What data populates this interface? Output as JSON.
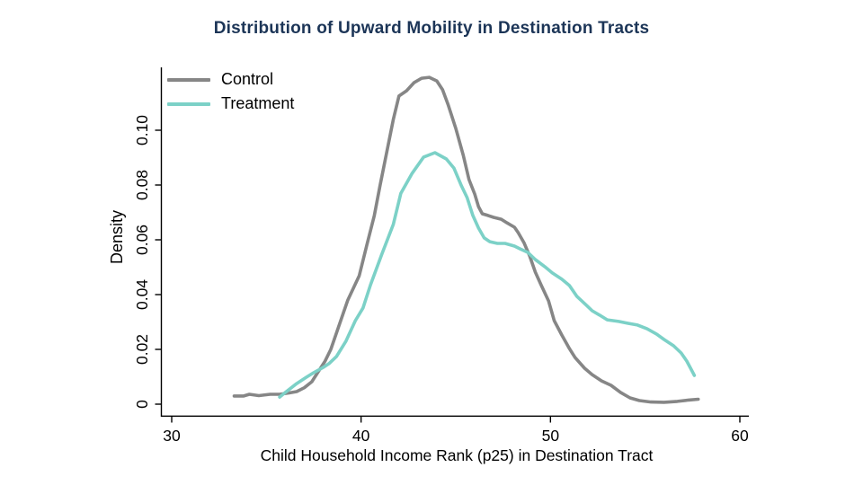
{
  "title": "Distribution of Upward Mobility in Destination Tracts",
  "colors": {
    "title": "#1c3557",
    "axis": "#000000",
    "control": "#868686",
    "treatment": "#7cd1c7",
    "background": "#ffffff"
  },
  "legend": {
    "items": [
      "Control",
      "Treatment"
    ]
  },
  "chart_data": {
    "type": "line",
    "title": "Distribution of Upward Mobility in Destination Tracts",
    "xlabel": "Child Household Income Rank (p25) in Destination Tract",
    "ylabel": "Density",
    "xlim": [
      29.4,
      60.5
    ],
    "ylim": [
      0,
      0.127
    ],
    "x_ticks": [
      30,
      40,
      50,
      60
    ],
    "x_tick_labels": [
      "30",
      "40",
      "50",
      "60"
    ],
    "y_ticks": [
      0,
      0.02,
      0.04,
      0.06,
      0.08,
      0.1
    ],
    "y_tick_labels": [
      "0",
      "0.02",
      "0.04",
      "0.06",
      "0.08",
      "0.10"
    ],
    "grid": false,
    "legend_position": "top-left-inside",
    "series": [
      {
        "name": "Control",
        "color": "#868686",
        "points": [
          [
            33.3,
            0.003
          ],
          [
            33.8,
            0.003
          ],
          [
            34.1,
            0.0036
          ],
          [
            34.6,
            0.0031
          ],
          [
            35.2,
            0.0036
          ],
          [
            35.7,
            0.0036
          ],
          [
            36.2,
            0.0041
          ],
          [
            36.6,
            0.0046
          ],
          [
            37.0,
            0.006
          ],
          [
            37.4,
            0.0082
          ],
          [
            37.8,
            0.0125
          ],
          [
            38.1,
            0.0157
          ],
          [
            38.4,
            0.02
          ],
          [
            38.8,
            0.028
          ],
          [
            39.3,
            0.038
          ],
          [
            39.9,
            0.0469
          ],
          [
            40.3,
            0.058
          ],
          [
            40.7,
            0.0689
          ],
          [
            41.0,
            0.0797
          ],
          [
            41.7,
            0.1039
          ],
          [
            42.0,
            0.1125
          ],
          [
            42.4,
            0.1144
          ],
          [
            42.8,
            0.1174
          ],
          [
            43.2,
            0.119
          ],
          [
            43.6,
            0.1193
          ],
          [
            44.0,
            0.118
          ],
          [
            44.3,
            0.1148
          ],
          [
            44.6,
            0.1092
          ],
          [
            45.0,
            0.1007
          ],
          [
            45.4,
            0.0908
          ],
          [
            45.7,
            0.082
          ],
          [
            46.0,
            0.0767
          ],
          [
            46.2,
            0.0721
          ],
          [
            46.4,
            0.0695
          ],
          [
            46.7,
            0.0689
          ],
          [
            47.0,
            0.0682
          ],
          [
            47.4,
            0.0675
          ],
          [
            47.7,
            0.0662
          ],
          [
            48.1,
            0.0646
          ],
          [
            48.3,
            0.0626
          ],
          [
            48.6,
            0.059
          ],
          [
            48.9,
            0.0541
          ],
          [
            49.2,
            0.0482
          ],
          [
            49.5,
            0.0436
          ],
          [
            49.9,
            0.0377
          ],
          [
            50.2,
            0.0305
          ],
          [
            50.6,
            0.0252
          ],
          [
            51.0,
            0.0203
          ],
          [
            51.3,
            0.017
          ],
          [
            51.8,
            0.0131
          ],
          [
            52.2,
            0.0108
          ],
          [
            52.7,
            0.0085
          ],
          [
            53.2,
            0.0069
          ],
          [
            53.7,
            0.0043
          ],
          [
            54.2,
            0.0023
          ],
          [
            54.7,
            0.0013
          ],
          [
            55.3,
            0.0008
          ],
          [
            56.0,
            0.0007
          ],
          [
            56.7,
            0.001
          ],
          [
            57.3,
            0.0015
          ],
          [
            57.8,
            0.0018
          ]
        ]
      },
      {
        "name": "Treatment",
        "color": "#7cd1c7",
        "points": [
          [
            35.7,
            0.0026
          ],
          [
            36.0,
            0.0043
          ],
          [
            36.6,
            0.0075
          ],
          [
            37.1,
            0.0098
          ],
          [
            37.5,
            0.0115
          ],
          [
            38.0,
            0.0134
          ],
          [
            38.3,
            0.0148
          ],
          [
            38.7,
            0.0174
          ],
          [
            39.2,
            0.023
          ],
          [
            39.7,
            0.0305
          ],
          [
            40.1,
            0.0351
          ],
          [
            40.5,
            0.0436
          ],
          [
            41.1,
            0.0548
          ],
          [
            41.7,
            0.0656
          ],
          [
            42.1,
            0.077
          ],
          [
            42.7,
            0.0843
          ],
          [
            43.3,
            0.0902
          ],
          [
            43.9,
            0.0918
          ],
          [
            44.5,
            0.0895
          ],
          [
            44.9,
            0.0862
          ],
          [
            45.3,
            0.0797
          ],
          [
            45.6,
            0.0754
          ],
          [
            45.9,
            0.0689
          ],
          [
            46.2,
            0.0643
          ],
          [
            46.5,
            0.0607
          ],
          [
            46.8,
            0.0593
          ],
          [
            47.2,
            0.0587
          ],
          [
            47.6,
            0.0587
          ],
          [
            48.1,
            0.0577
          ],
          [
            48.4,
            0.0567
          ],
          [
            48.8,
            0.0554
          ],
          [
            49.2,
            0.0528
          ],
          [
            49.7,
            0.0502
          ],
          [
            50.1,
            0.0479
          ],
          [
            50.6,
            0.0456
          ],
          [
            51.0,
            0.0433
          ],
          [
            51.4,
            0.0393
          ],
          [
            51.9,
            0.0361
          ],
          [
            52.2,
            0.0341
          ],
          [
            52.6,
            0.0325
          ],
          [
            53.0,
            0.0308
          ],
          [
            53.6,
            0.0302
          ],
          [
            54.1,
            0.0295
          ],
          [
            54.6,
            0.0289
          ],
          [
            55.1,
            0.0275
          ],
          [
            55.6,
            0.0256
          ],
          [
            56.0,
            0.0236
          ],
          [
            56.5,
            0.0213
          ],
          [
            56.9,
            0.0187
          ],
          [
            57.2,
            0.0157
          ],
          [
            57.4,
            0.0131
          ],
          [
            57.6,
            0.0105
          ]
        ]
      }
    ]
  }
}
